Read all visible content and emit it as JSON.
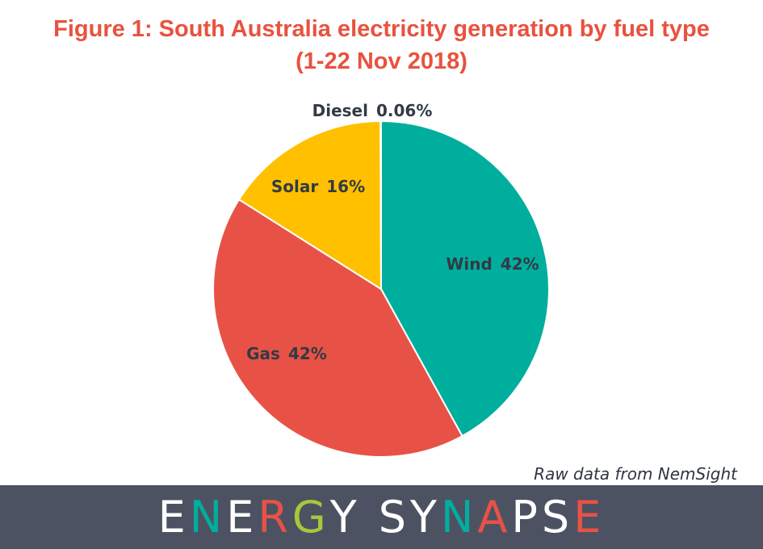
{
  "title_lines": [
    "Figure 1: South Australia electricity generation by fuel type",
    "(1-22 Nov 2018)"
  ],
  "chart_data": {
    "type": "pie",
    "title": "Figure 1: South Australia electricity generation by fuel type (1-22 Nov 2018)",
    "slices": [
      {
        "label": "Wind",
        "value_label": "42%",
        "value": 42,
        "color": "#00ae9e"
      },
      {
        "label": "Gas",
        "value_label": "42%",
        "value": 42,
        "color": "#e85246"
      },
      {
        "label": "Solar",
        "value_label": "16%",
        "value": 16,
        "color": "#ffc000"
      },
      {
        "label": "Diesel",
        "value_label": "0.06%",
        "value": 0.06,
        "color": "#4d5262"
      }
    ],
    "start_angle": "12 o'clock",
    "direction": "clockwise"
  },
  "source_note": "Raw data from NemSight",
  "footer": {
    "background": "#4d5262",
    "logo_text": "ENERGY SYNAPSE",
    "logo_letters": [
      {
        "ch": "E",
        "color": "#ffffff"
      },
      {
        "ch": "N",
        "color": "#00ae9e"
      },
      {
        "ch": "E",
        "color": "#ffffff"
      },
      {
        "ch": "R",
        "color": "#e85246"
      },
      {
        "ch": "G",
        "color": "#a5c93a"
      },
      {
        "ch": "Y",
        "color": "#ffffff"
      },
      {
        "ch": " ",
        "color": "#ffffff"
      },
      {
        "ch": "S",
        "color": "#ffffff"
      },
      {
        "ch": "Y",
        "color": "#ffffff"
      },
      {
        "ch": "N",
        "color": "#00ae9e"
      },
      {
        "ch": "A",
        "color": "#e85246"
      },
      {
        "ch": "P",
        "color": "#ffffff"
      },
      {
        "ch": "S",
        "color": "#ffffff"
      },
      {
        "ch": "E",
        "color": "#e85246"
      }
    ]
  }
}
